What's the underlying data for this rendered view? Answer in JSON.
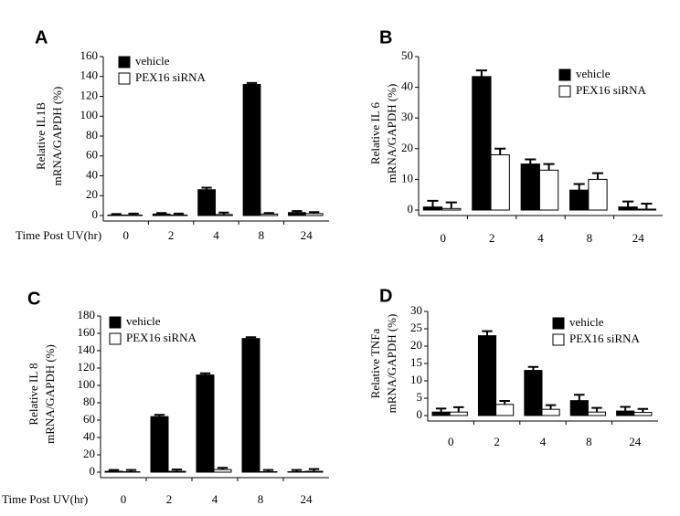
{
  "chart_data": [
    {
      "type": "bar",
      "panel": "A",
      "ylabel": [
        "Relative IL1B",
        "mRNA/GAPDH  (%)"
      ],
      "xlabel": "Time Post UV(hr)",
      "categories": [
        "0",
        "2",
        "4",
        "8",
        "24"
      ],
      "series": [
        {
          "name": "vehicle",
          "color": "#000000",
          "values": [
            0.5,
            1.5,
            26,
            132,
            3
          ],
          "errors": [
            1,
            1,
            2,
            1.5,
            1.5
          ]
        },
        {
          "name": "PEX16 siRNA",
          "color": "#ffffff",
          "values": [
            0.5,
            0.5,
            1,
            1.5,
            2
          ],
          "errors": [
            1.5,
            1.5,
            2,
            1,
            1.5
          ]
        }
      ],
      "ylim": [
        0,
        160
      ],
      "yticks": [
        0,
        20,
        40,
        60,
        80,
        100,
        120,
        140,
        160
      ]
    },
    {
      "type": "bar",
      "panel": "B",
      "ylabel": [
        "Relative IL 6",
        "mRNA/GAPDH  (%)"
      ],
      "categories": [
        "0",
        "2",
        "4",
        "8",
        "24"
      ],
      "series": [
        {
          "name": "vehicle",
          "color": "#000000",
          "values": [
            1,
            43.5,
            15,
            6.5,
            1
          ],
          "errors": [
            2,
            2,
            1.5,
            2,
            1.8
          ]
        },
        {
          "name": "PEX16 siRNA",
          "color": "#ffffff",
          "values": [
            0.5,
            18,
            13,
            10,
            0.3
          ],
          "errors": [
            2,
            2,
            2,
            2,
            1.8
          ]
        }
      ],
      "ylim": [
        0,
        50
      ],
      "yticks": [
        0,
        10,
        20,
        30,
        40,
        50
      ]
    },
    {
      "type": "bar",
      "panel": "C",
      "ylabel": [
        "Relative IL 8",
        "mRNA/GAPDH  (%)"
      ],
      "xlabel": "Time Post UV(hr)",
      "categories": [
        "0",
        "2",
        "4",
        "8",
        "24"
      ],
      "series": [
        {
          "name": "vehicle",
          "color": "#000000",
          "values": [
            1,
            64,
            112,
            154,
            0.5
          ],
          "errors": [
            1.5,
            2,
            2,
            1.5,
            2
          ]
        },
        {
          "name": "PEX16 siRNA",
          "color": "#ffffff",
          "values": [
            0.5,
            1,
            3,
            0.5,
            1
          ],
          "errors": [
            2,
            2,
            2,
            2,
            2.5
          ]
        }
      ],
      "ylim": [
        0,
        180
      ],
      "yticks": [
        0,
        20,
        40,
        60,
        80,
        100,
        120,
        140,
        160,
        180
      ]
    },
    {
      "type": "bar",
      "panel": "D",
      "ylabel": [
        "Relative TNFa",
        "mRNA/GAPDH  (%)"
      ],
      "categories": [
        "0",
        "2",
        "4",
        "8",
        "24"
      ],
      "series": [
        {
          "name": "vehicle",
          "color": "#000000",
          "values": [
            1,
            23,
            13,
            4.3,
            1.3
          ],
          "errors": [
            1,
            1.3,
            1,
            1.7,
            1.2
          ]
        },
        {
          "name": "PEX16 siRNA",
          "color": "#ffffff",
          "values": [
            1,
            3.2,
            1.8,
            1,
            0.9
          ],
          "errors": [
            1.4,
            1,
            1.2,
            1.2,
            1
          ]
        }
      ],
      "ylim": [
        0,
        30
      ],
      "yticks": [
        0,
        5,
        10,
        15,
        20,
        25,
        30
      ]
    }
  ]
}
